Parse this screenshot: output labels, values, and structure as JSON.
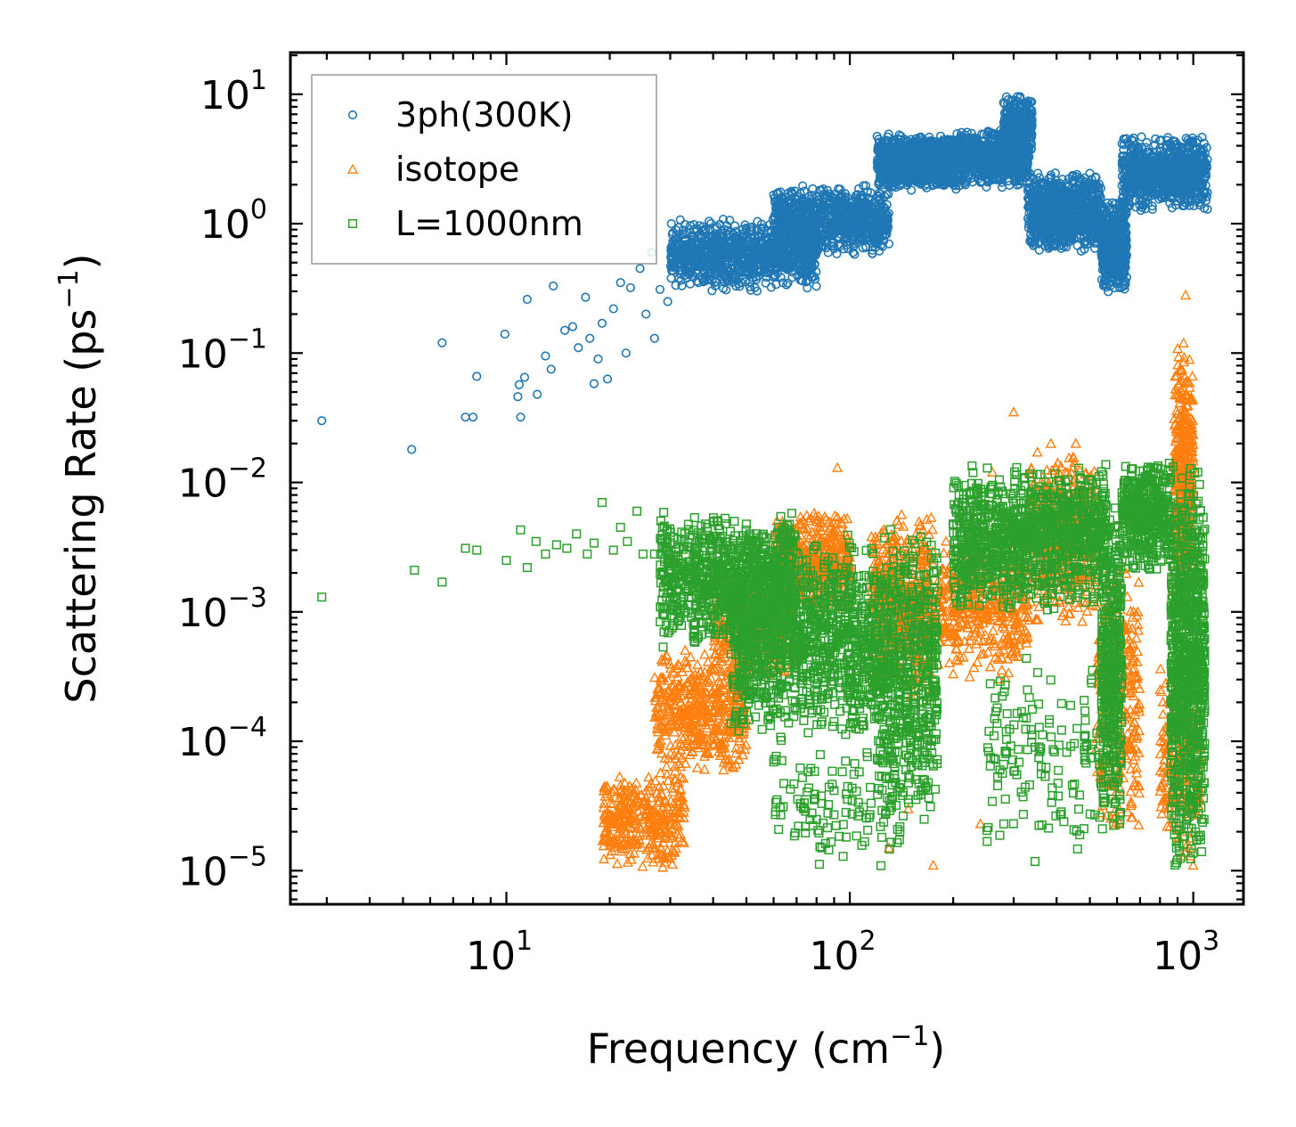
{
  "chart_data": {
    "type": "scatter",
    "title": "",
    "xlabel": "Frequency (cm",
    "xlabel_sup": "−1",
    "xlabel_tail": ")",
    "ylabel": "Scattering Rate (ps",
    "ylabel_sup": "−1",
    "ylabel_tail": ")",
    "xscale": "log",
    "yscale": "log",
    "xlim": [
      2.35,
      1400
    ],
    "ylim": [
      5.5e-06,
      21
    ],
    "x_ticks": [
      {
        "value": 10,
        "base": "10",
        "exp": "1"
      },
      {
        "value": 100,
        "base": "10",
        "exp": "2"
      },
      {
        "value": 1000,
        "base": "10",
        "exp": "3"
      }
    ],
    "y_ticks": [
      {
        "value": 1e-05,
        "base": "10",
        "exp": "−5"
      },
      {
        "value": 0.0001,
        "base": "10",
        "exp": "−4"
      },
      {
        "value": 0.001,
        "base": "10",
        "exp": "−3"
      },
      {
        "value": 0.01,
        "base": "10",
        "exp": "−2"
      },
      {
        "value": 0.1,
        "base": "10",
        "exp": "−1"
      },
      {
        "value": 1,
        "base": "10",
        "exp": "0"
      },
      {
        "value": 10,
        "base": "10",
        "exp": "1"
      }
    ],
    "grid": false,
    "legend_position": "top-left",
    "series": [
      {
        "name": "3ph(300K)",
        "marker": "circle",
        "color": "#1f77b4",
        "points": [
          [
            2.9,
            0.03
          ],
          [
            5.3,
            0.018
          ],
          [
            6.5,
            0.12
          ],
          [
            7.6,
            0.032
          ],
          [
            8.0,
            0.032
          ],
          [
            8.2,
            0.066
          ],
          [
            9.9,
            0.14
          ],
          [
            10.8,
            0.046
          ],
          [
            10.9,
            0.057
          ],
          [
            11.0,
            0.032
          ],
          [
            11.3,
            0.065
          ],
          [
            11.5,
            0.26
          ],
          [
            12.3,
            0.048
          ],
          [
            13.0,
            0.095
          ],
          [
            13.5,
            0.075
          ],
          [
            13.7,
            0.33
          ],
          [
            14.8,
            0.15
          ],
          [
            15.6,
            0.16
          ],
          [
            16.2,
            0.11
          ],
          [
            17.0,
            0.27
          ],
          [
            17.5,
            0.13
          ],
          [
            18.0,
            0.058
          ],
          [
            18.5,
            0.09
          ],
          [
            19.0,
            0.17
          ],
          [
            19.7,
            0.063
          ],
          [
            20.5,
            0.22
          ],
          [
            21.5,
            0.35
          ],
          [
            22.3,
            0.1
          ],
          [
            23.0,
            0.32
          ],
          [
            24.5,
            0.45
          ],
          [
            25.5,
            0.2
          ],
          [
            26.5,
            0.6
          ],
          [
            27.0,
            0.13
          ],
          [
            28.0,
            0.31
          ],
          [
            29.5,
            0.25
          ],
          [
            30.5,
            0.7
          ]
        ],
        "bands": [
          {
            "x": [
              30,
              80
            ],
            "y": [
              0.3,
              1.1
            ],
            "n": 900
          },
          {
            "x": [
              60,
              130
            ],
            "y": [
              0.55,
              2.0
            ],
            "n": 900
          },
          {
            "x": [
              120,
              205
            ],
            "y": [
              1.8,
              5.0
            ],
            "n": 900
          },
          {
            "x": [
              205,
              330
            ],
            "y": [
              1.9,
              5.5
            ],
            "n": 700
          },
          {
            "x": [
              280,
              340
            ],
            "y": [
              3.0,
              10.5
            ],
            "n": 300
          },
          {
            "x": [
              330,
              540
            ],
            "y": [
              0.6,
              2.6
            ],
            "n": 800
          },
          {
            "x": [
              540,
              640
            ],
            "y": [
              0.28,
              1.6
            ],
            "n": 500
          },
          {
            "x": [
              620,
              1100
            ],
            "y": [
              1.2,
              5.0
            ],
            "n": 800
          }
        ]
      },
      {
        "name": "isotope",
        "marker": "triangle",
        "color": "#ff7f0e",
        "points": [
          [
            300,
            0.035
          ],
          [
            385,
            0.02
          ],
          [
            950,
            0.28
          ],
          [
            1000,
            1.1e-05
          ],
          [
            130,
            1.5e-05
          ],
          [
            175,
            1.1e-05
          ],
          [
            148,
            3e-05
          ],
          [
            840,
            2.2e-05
          ],
          [
            1040,
            4e-05
          ],
          [
            240,
            2.3e-05
          ],
          [
            455,
            0.02
          ],
          [
            260,
            0.012
          ],
          [
            92,
            0.013
          ]
        ],
        "bands": [
          {
            "x": [
              19,
              33
            ],
            "y": [
              1e-05,
              6e-05
            ],
            "n": 350
          },
          {
            "x": [
              27,
              50
            ],
            "y": [
              5e-05,
              0.0006
            ],
            "n": 500
          },
          {
            "x": [
              40,
              70
            ],
            "y": [
              0.0003,
              0.002
            ],
            "n": 300
          },
          {
            "x": [
              60,
              100
            ],
            "y": [
              0.001,
              0.006
            ],
            "n": 500
          },
          {
            "x": [
              115,
              175
            ],
            "y": [
              0.0002,
              0.006
            ],
            "n": 500
          },
          {
            "x": [
              180,
              330
            ],
            "y": [
              0.0003,
              0.004
            ],
            "n": 400
          },
          {
            "x": [
              330,
              520
            ],
            "y": [
              0.0008,
              0.02
            ],
            "n": 400
          },
          {
            "x": [
              520,
              700
            ],
            "y": [
              2e-05,
              0.003
            ],
            "n": 300
          },
          {
            "x": [
              880,
              1000
            ],
            "y": [
              0.001,
              0.12
            ],
            "n": 400
          },
          {
            "x": [
              800,
              1050
            ],
            "y": [
              1e-05,
              0.0005
            ],
            "n": 200
          }
        ]
      },
      {
        "name": "L=1000nm",
        "marker": "square",
        "color": "#2ca02c",
        "points": [
          [
            2.9,
            0.0013
          ],
          [
            5.4,
            0.0021
          ],
          [
            6.5,
            0.0017
          ],
          [
            7.6,
            0.0031
          ],
          [
            8.2,
            0.003
          ],
          [
            10.0,
            0.0025
          ],
          [
            11.0,
            0.0043
          ],
          [
            11.5,
            0.0022
          ],
          [
            12.2,
            0.0035
          ],
          [
            13.0,
            0.0028
          ],
          [
            14.0,
            0.0033
          ],
          [
            15.0,
            0.0031
          ],
          [
            16.0,
            0.004
          ],
          [
            17.2,
            0.0028
          ],
          [
            18.0,
            0.0034
          ],
          [
            19.0,
            0.007
          ],
          [
            20.5,
            0.003
          ],
          [
            21.5,
            0.0045
          ],
          [
            22.5,
            0.0035
          ],
          [
            24.0,
            0.006
          ],
          [
            25.0,
            0.0028
          ],
          [
            27.0,
            0.0028
          ],
          [
            28.5,
            0.0045
          ],
          [
            30.0,
            0.0025
          ]
        ],
        "bands": [
          {
            "x": [
              28,
              70
            ],
            "y": [
              0.0005,
              0.006
            ],
            "n": 900
          },
          {
            "x": [
              45,
              120
            ],
            "y": [
              0.0001,
              0.004
            ],
            "n": 1100
          },
          {
            "x": [
              60,
              140
            ],
            "y": [
              1e-05,
              0.0001
            ],
            "n": 120
          },
          {
            "x": [
              120,
              180
            ],
            "y": [
              2e-05,
              0.005
            ],
            "n": 600
          },
          {
            "x": [
              200,
              560
            ],
            "y": [
              0.001,
              0.014
            ],
            "n": 1100
          },
          {
            "x": [
              250,
              550
            ],
            "y": [
              1e-05,
              0.0006
            ],
            "n": 150
          },
          {
            "x": [
              540,
              620
            ],
            "y": [
              2e-05,
              0.008
            ],
            "n": 400
          },
          {
            "x": [
              620,
              860
            ],
            "y": [
              0.002,
              0.015
            ],
            "n": 400
          },
          {
            "x": [
              860,
              1080
            ],
            "y": [
              1e-05,
              0.014
            ],
            "n": 900
          }
        ]
      }
    ]
  }
}
